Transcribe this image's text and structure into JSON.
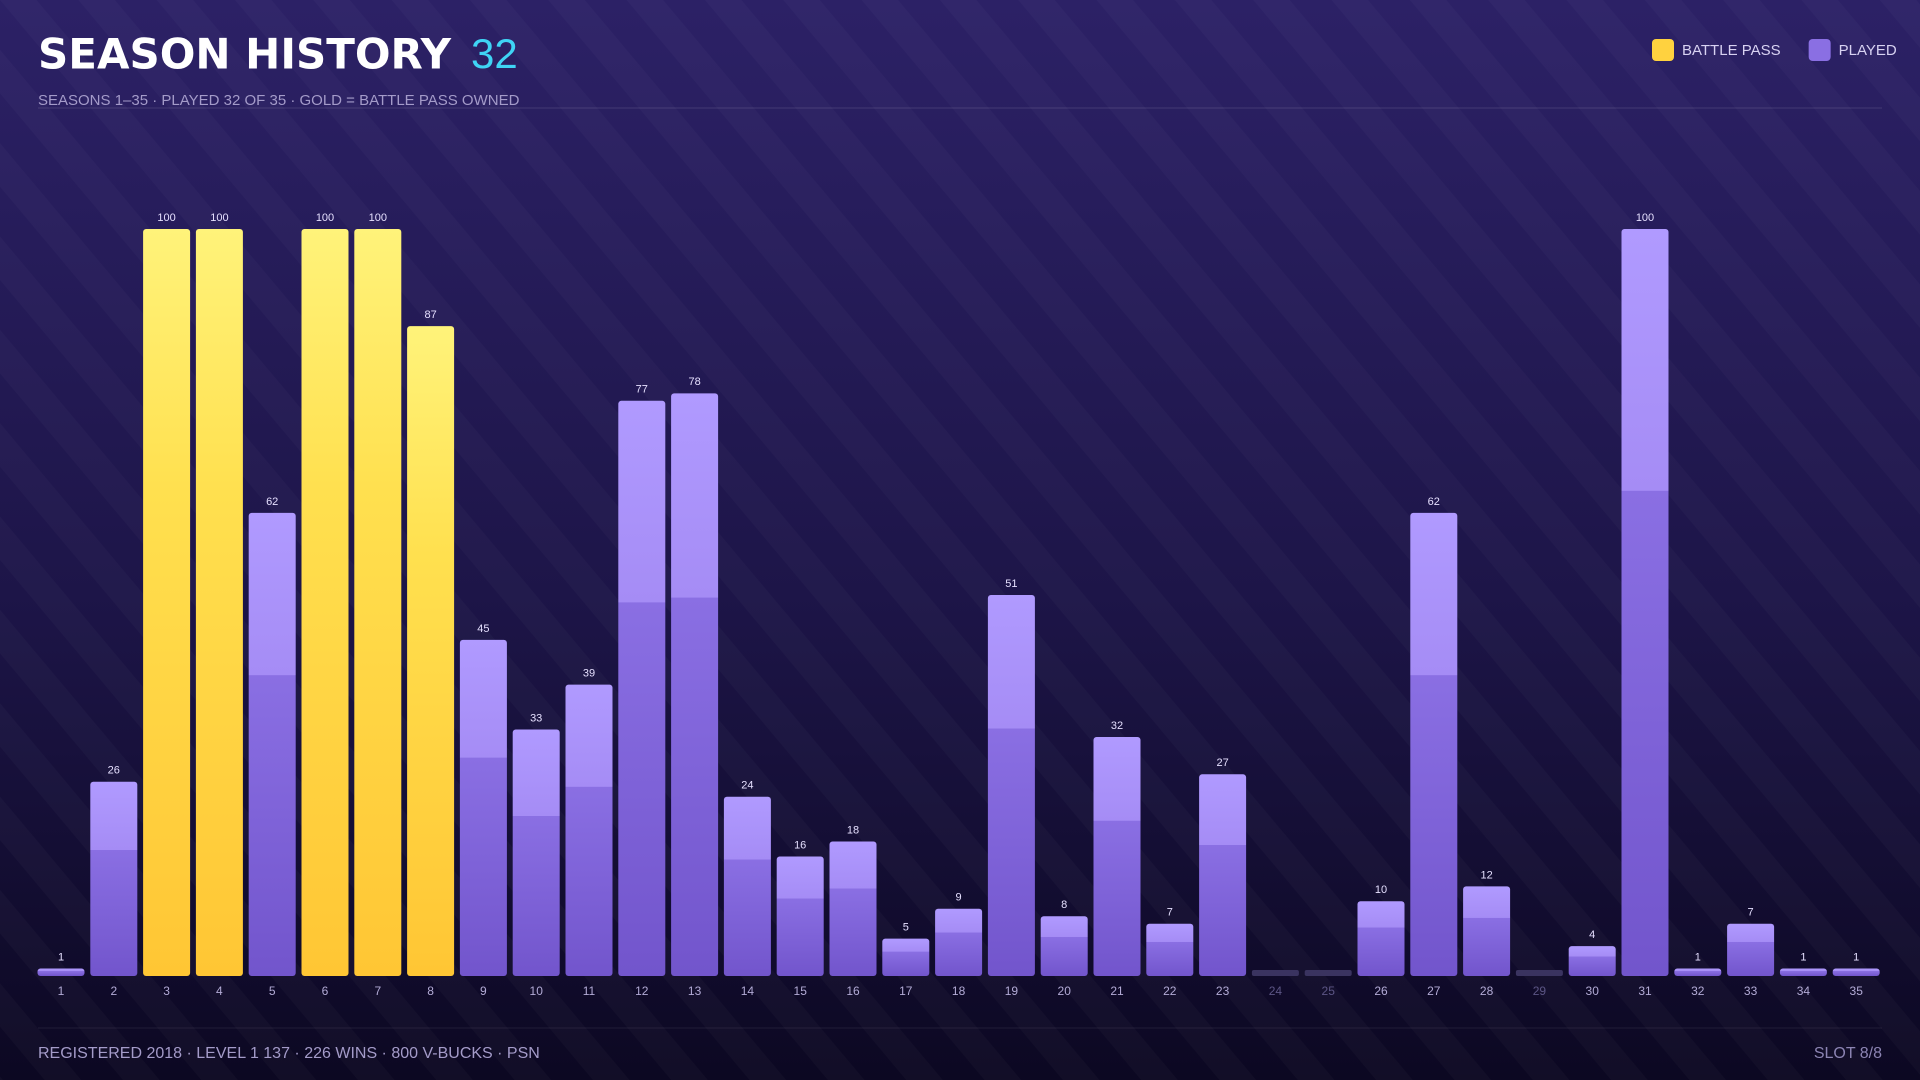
{
  "chart_data": {
    "type": "bar",
    "title": "SEASON HISTORY",
    "title_count": 32,
    "subtitle": "SEASONS 1–35 · PLAYED 32 OF 35 · GOLD = BATTLE PASS OWNED",
    "categories": [
      "1",
      "2",
      "3",
      "4",
      "5",
      "6",
      "7",
      "8",
      "9",
      "10",
      "11",
      "12",
      "13",
      "14",
      "15",
      "16",
      "17",
      "18",
      "19",
      "20",
      "21",
      "22",
      "23",
      "24",
      "25",
      "26",
      "27",
      "28",
      "29",
      "30",
      "31",
      "32",
      "33",
      "34",
      "35"
    ],
    "series": [
      {
        "name": "BATTLE PASS",
        "color": "#ffd23f",
        "values": [
          null,
          null,
          100,
          100,
          null,
          100,
          100,
          87,
          null,
          null,
          null,
          null,
          null,
          null,
          null,
          null,
          null,
          null,
          null,
          null,
          null,
          null,
          null,
          null,
          null,
          null,
          null,
          null,
          null,
          null,
          null,
          null,
          null,
          null,
          null
        ]
      },
      {
        "name": "PLAYED",
        "color": "#8a6fe3",
        "values": [
          1,
          26,
          null,
          null,
          62,
          null,
          null,
          null,
          45,
          33,
          39,
          77,
          78,
          24,
          16,
          18,
          5,
          9,
          51,
          8,
          32,
          7,
          27,
          null,
          null,
          10,
          62,
          12,
          null,
          4,
          100,
          1,
          7,
          1,
          1
        ]
      }
    ],
    "ylim": [
      0,
      100
    ],
    "footer": "REGISTERED 2018 · LEVEL 1 137 · 226 WINS · 800 V-BUCKS · PSN",
    "slot": "SLOT 8/8"
  }
}
